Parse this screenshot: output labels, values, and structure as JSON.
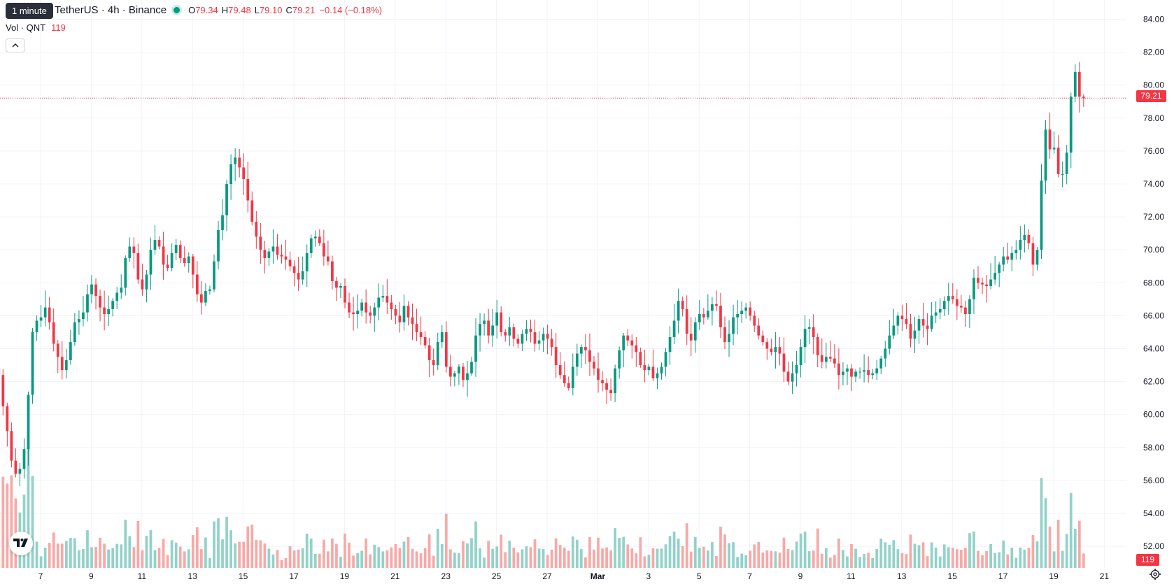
{
  "tooltip": {
    "text": "1 minute"
  },
  "legend": {
    "symbol": "TetherUS · 4h · Binance",
    "o_label": "O",
    "o_value": "79.34",
    "h_label": "H",
    "h_value": "79.48",
    "l_label": "L",
    "l_value": "79.10",
    "c_label": "C",
    "c_value": "79.21",
    "change": "−0.14 (−0.18%)"
  },
  "volume_legend": {
    "label": "Vol · QNT",
    "value": "119"
  },
  "price_badge": "79.21",
  "volume_badge": "119",
  "colors": {
    "up": "#089981",
    "down": "#f23645",
    "up_volume": "#92d2c9",
    "down_volume": "#f7a9a7",
    "grid": "#f0f3fa"
  },
  "icons": {
    "collapse": "chevron-up-icon",
    "logo": "tradingview-logo-icon",
    "settings": "gear-icon"
  },
  "chart_data": {
    "type": "candlestick",
    "interval": "4h",
    "last_price": 79.21,
    "y_axis": {
      "side": "right",
      "ylim": [
        50.8,
        84.6
      ],
      "ticks": [
        "84.00",
        "82.00",
        "80.00",
        "78.00",
        "76.00",
        "74.00",
        "72.00",
        "70.00",
        "68.00",
        "66.00",
        "64.00",
        "62.00",
        "60.00",
        "58.00",
        "56.00",
        "54.00",
        "52.00"
      ]
    },
    "x_axis": {
      "ticks": [
        {
          "label": "7",
          "day": 7
        },
        {
          "label": "9",
          "day": 9
        },
        {
          "label": "11",
          "day": 11
        },
        {
          "label": "13",
          "day": 13
        },
        {
          "label": "15",
          "day": 15
        },
        {
          "label": "17",
          "day": 17
        },
        {
          "label": "19",
          "day": 19
        },
        {
          "label": "21",
          "day": 21
        },
        {
          "label": "23",
          "day": 23
        },
        {
          "label": "25",
          "day": 25
        },
        {
          "label": "27",
          "day": 27
        },
        {
          "label": "Mar",
          "day": 29,
          "bold": true
        },
        {
          "label": "3",
          "day": 31
        },
        {
          "label": "5",
          "day": 33
        },
        {
          "label": "7",
          "day": 35
        },
        {
          "label": "9",
          "day": 37
        },
        {
          "label": "11",
          "day": 39
        },
        {
          "label": "13",
          "day": 41
        },
        {
          "label": "15",
          "day": 43
        },
        {
          "label": "17",
          "day": 45
        },
        {
          "label": "19",
          "day": 47
        },
        {
          "label": "21",
          "day": 49
        }
      ]
    },
    "first_day": 5.35,
    "bars_per_day": 6,
    "grid": true,
    "series_closes": [
      62.4,
      60.5,
      59.0,
      57.2,
      56.4,
      56.7,
      57.9,
      61.2,
      65.0,
      65.7,
      65.9,
      66.5,
      65.6,
      64.3,
      63.5,
      62.7,
      63.3,
      64.4,
      65.6,
      65.8,
      66.2,
      67.3,
      67.9,
      67.2,
      66.5,
      66.1,
      66.4,
      66.9,
      67.4,
      67.7,
      69.5,
      70.2,
      69.8,
      68.2,
      67.6,
      68.5,
      70.0,
      70.6,
      70.2,
      69.1,
      68.9,
      69.8,
      70.3,
      69.5,
      69.2,
      69.6,
      68.5,
      67.3,
      66.8,
      67.5,
      67.6,
      69.3,
      71.2,
      72.1,
      74.0,
      75.2,
      75.6,
      75.0,
      74.3,
      73.0,
      71.7,
      70.8,
      70.0,
      69.5,
      69.9,
      70.2,
      69.7,
      69.6,
      69.4,
      69.0,
      68.6,
      68.2,
      68.7,
      69.8,
      70.7,
      70.8,
      70.4,
      69.6,
      69.3,
      68.1,
      67.7,
      67.8,
      66.8,
      66.2,
      66.1,
      66.3,
      66.8,
      66.2,
      66.0,
      66.5,
      67.1,
      67.2,
      66.8,
      66.4,
      66.0,
      65.6,
      66.6,
      65.9,
      65.5,
      65.0,
      64.7,
      64.2,
      63.3,
      63.0,
      64.4,
      65.0,
      62.9,
      62.3,
      62.5,
      62.9,
      62.1,
      62.5,
      63.2,
      64.8,
      65.5,
      65.7,
      64.8,
      65.4,
      66.2,
      65.0,
      64.8,
      65.3,
      64.6,
      64.3,
      64.9,
      65.2,
      65.0,
      64.3,
      64.5,
      64.9,
      64.6,
      64.1,
      63.0,
      62.4,
      61.9,
      61.6,
      62.9,
      63.7,
      64.1,
      63.9,
      63.2,
      62.8,
      62.1,
      61.9,
      61.5,
      61.3,
      62.8,
      63.9,
      64.8,
      64.5,
      64.2,
      63.8,
      63.0,
      62.7,
      62.9,
      62.2,
      62.5,
      62.9,
      63.8,
      64.7,
      65.7,
      66.9,
      66.4,
      64.9,
      64.5,
      65.6,
      66.1,
      65.9,
      66.3,
      66.7,
      66.6,
      65.3,
      64.4,
      64.9,
      65.9,
      66.1,
      66.3,
      66.5,
      66.0,
      65.4,
      64.8,
      64.4,
      64.0,
      63.8,
      64.1,
      63.7,
      62.6,
      62.0,
      62.5,
      63.0,
      64.1,
      65.2,
      65.3,
      64.7,
      63.6,
      63.2,
      63.5,
      63.4,
      63.1,
      62.4,
      62.6,
      62.8,
      62.3,
      62.6,
      62.6,
      62.7,
      62.4,
      62.5,
      62.8,
      63.4,
      64.0,
      64.8,
      65.4,
      66.0,
      65.8,
      65.5,
      64.6,
      65.1,
      65.8,
      65.4,
      65.2,
      66.0,
      66.2,
      66.4,
      66.9,
      67.2,
      67.0,
      66.6,
      66.5,
      66.1,
      67.0,
      68.3,
      68.0,
      67.9,
      67.8,
      68.2,
      68.6,
      69.1,
      69.6,
      69.4,
      69.8,
      70.0,
      70.6,
      70.9,
      70.4,
      69.1,
      70.0,
      74.2,
      77.3,
      76.1,
      76.2,
      74.6,
      74.6,
      75.9,
      79.3,
      80.8,
      79.3,
      79.2
    ],
    "volume_ylim": [
      0,
      100
    ]
  }
}
